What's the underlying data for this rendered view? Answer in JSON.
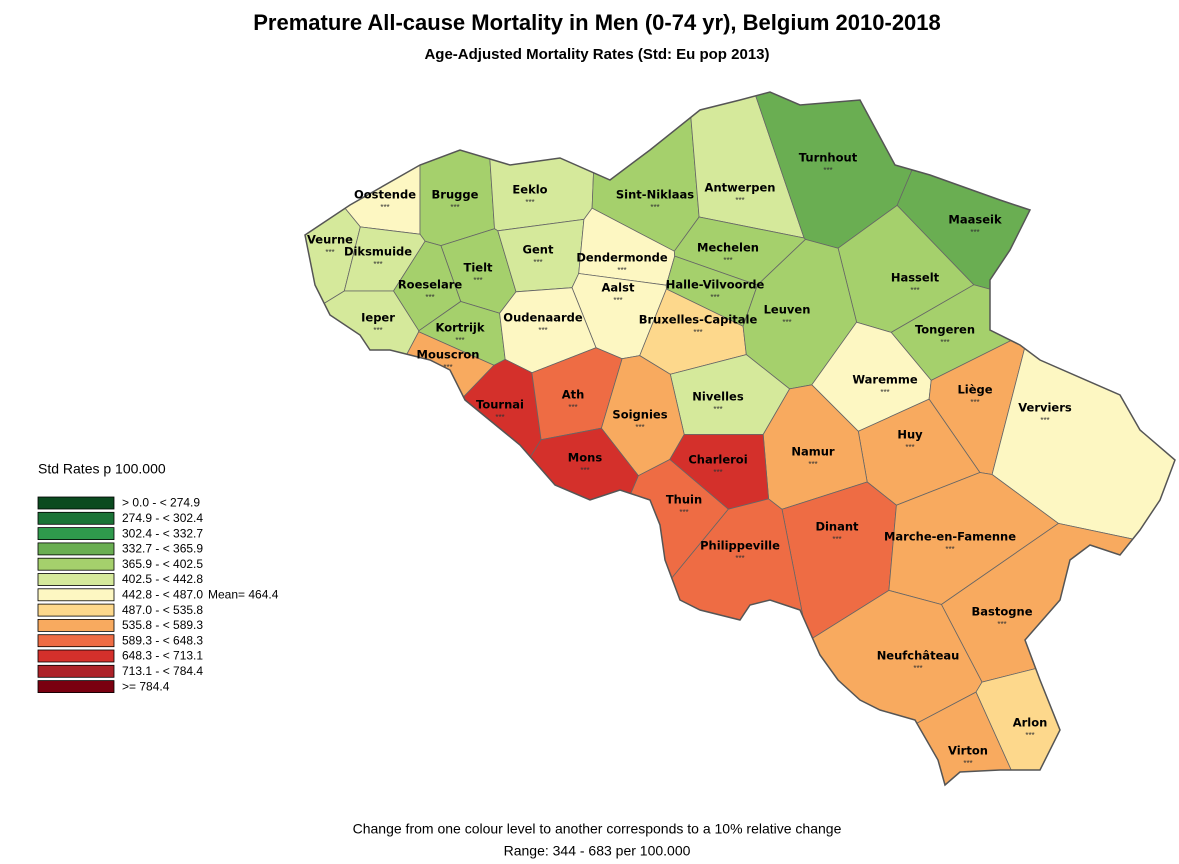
{
  "header": {
    "title": "Premature All-cause  Mortality in Men (0-74 yr), Belgium 2010-2018",
    "subtitle": "Age-Adjusted Mortality Rates (Std: Eu pop 2013)"
  },
  "legend": {
    "title": "Std Rates p 100.000",
    "mean_note": "Mean= 464.4",
    "classes": [
      {
        "label": ">  0.0 - < 274.9",
        "color": "#0b4a1f"
      },
      {
        "label": "274.9 - < 302.4",
        "color": "#1a7336"
      },
      {
        "label": "302.4 - < 332.7",
        "color": "#2f9a4c"
      },
      {
        "label": "332.7 - < 365.9",
        "color": "#6aae52"
      },
      {
        "label": "365.9 - < 402.5",
        "color": "#a5d06c"
      },
      {
        "label": "402.5 - < 442.8",
        "color": "#d5e99b"
      },
      {
        "label": "442.8 - < 487.0",
        "color": "#fdf7c2"
      },
      {
        "label": "487.0 - < 535.8",
        "color": "#fdd88c"
      },
      {
        "label": "535.8 - < 589.3",
        "color": "#f8aa5f"
      },
      {
        "label": "589.3 - < 648.3",
        "color": "#ee6c44"
      },
      {
        "label": "648.3 - < 713.1",
        "color": "#d4302b"
      },
      {
        "label": "713.1 - < 784.4",
        "color": "#ad2228"
      },
      {
        "label": ">=  784.4",
        "color": "#7a0010"
      }
    ]
  },
  "marker": "***",
  "regions": [
    {
      "name": "Oostende",
      "color": "#fdf7c2"
    },
    {
      "name": "Brugge",
      "color": "#a5d06c"
    },
    {
      "name": "Eeklo",
      "color": "#d5e99b"
    },
    {
      "name": "Sint-Niklaas",
      "color": "#a5d06c"
    },
    {
      "name": "Antwerpen",
      "color": "#d5e99b"
    },
    {
      "name": "Turnhout",
      "color": "#6aae52"
    },
    {
      "name": "Maaseik",
      "color": "#6aae52"
    },
    {
      "name": "Veurne",
      "color": "#d5e99b"
    },
    {
      "name": "Diksmuide",
      "color": "#d5e99b"
    },
    {
      "name": "Tielt",
      "color": "#a5d06c"
    },
    {
      "name": "Gent",
      "color": "#d5e99b"
    },
    {
      "name": "Dendermonde",
      "color": "#fdf7c2"
    },
    {
      "name": "Mechelen",
      "color": "#a5d06c"
    },
    {
      "name": "Hasselt",
      "color": "#a5d06c"
    },
    {
      "name": "Roeselare",
      "color": "#a5d06c"
    },
    {
      "name": "Aalst",
      "color": "#fdf7c2"
    },
    {
      "name": "Halle-Vilvoorde",
      "color": "#a5d06c"
    },
    {
      "name": "Ieper",
      "color": "#d5e99b"
    },
    {
      "name": "Kortrijk",
      "color": "#a5d06c"
    },
    {
      "name": "Oudenaarde",
      "color": "#fdf7c2"
    },
    {
      "name": "Bruxelles-Capitale",
      "color": "#fdd88c"
    },
    {
      "name": "Leuven",
      "color": "#a5d06c"
    },
    {
      "name": "Tongeren",
      "color": "#a5d06c"
    },
    {
      "name": "Mouscron",
      "color": "#f8aa5f"
    },
    {
      "name": "Nivelles",
      "color": "#d5e99b"
    },
    {
      "name": "Waremme",
      "color": "#fdf7c2"
    },
    {
      "name": "Liège",
      "color": "#f8aa5f"
    },
    {
      "name": "Verviers",
      "color": "#fdf7c2"
    },
    {
      "name": "Tournai",
      "color": "#d4302b"
    },
    {
      "name": "Ath",
      "color": "#ee6c44"
    },
    {
      "name": "Soignies",
      "color": "#f8aa5f"
    },
    {
      "name": "Huy",
      "color": "#f8aa5f"
    },
    {
      "name": "Namur",
      "color": "#f8aa5f"
    },
    {
      "name": "Mons",
      "color": "#d4302b"
    },
    {
      "name": "Charleroi",
      "color": "#d4302b"
    },
    {
      "name": "Thuin",
      "color": "#ee6c44"
    },
    {
      "name": "Dinant",
      "color": "#ee6c44"
    },
    {
      "name": "Marche-en-Famenne",
      "color": "#f8aa5f"
    },
    {
      "name": "Philippeville",
      "color": "#ee6c44"
    },
    {
      "name": "Bastogne",
      "color": "#f8aa5f"
    },
    {
      "name": "Neufchâteau",
      "color": "#f8aa5f"
    },
    {
      "name": "Arlon",
      "color": "#fdd88c"
    },
    {
      "name": "Virton",
      "color": "#f8aa5f"
    }
  ],
  "footer": {
    "note": "Change from one colour level to another corresponds to a 10% relative change",
    "range": "Range: 344  -  683 per 100.000"
  }
}
